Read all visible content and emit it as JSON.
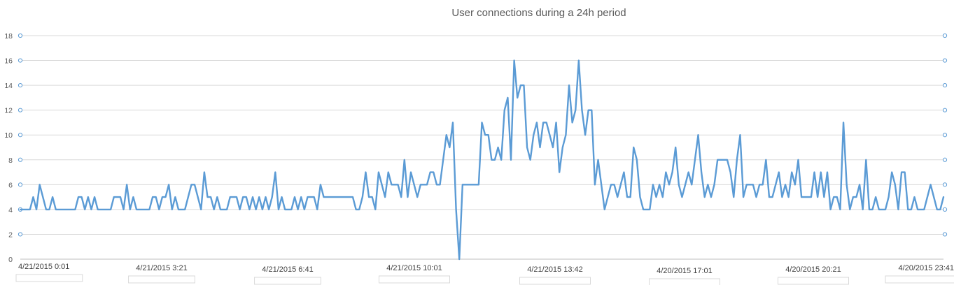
{
  "chart_data": {
    "type": "line",
    "title": "User connections during a 24h period",
    "xlabel": "",
    "ylabel": "",
    "ylim": [
      0,
      18
    ],
    "y_ticks": [
      0,
      2,
      4,
      6,
      8,
      10,
      12,
      14,
      16,
      18
    ],
    "x_tick_labels": [
      "4/21/2015 0:01",
      "4/21/2015 3:21",
      "4/21/2015 6:41",
      "4/21/2015 10:01",
      "4/21/2015 13:42",
      "4/20/2015 17:01",
      "4/20/2015 20:21",
      "4/20/2015 23:41"
    ],
    "grid": "horizontal",
    "legend": "none",
    "colors": {
      "series": "#5b9bd5",
      "grid": "#d9d9d9",
      "text": "#595959"
    },
    "series": [
      {
        "values": [
          4,
          4,
          4,
          4,
          5,
          4,
          6,
          5,
          4,
          4,
          5,
          4,
          4,
          4,
          4,
          4,
          4,
          4,
          5,
          5,
          4,
          5,
          4,
          5,
          4,
          4,
          4,
          4,
          4,
          5,
          5,
          5,
          4,
          6,
          4,
          5,
          4,
          4,
          4,
          4,
          4,
          5,
          5,
          4,
          5,
          5,
          6,
          4,
          5,
          4,
          4,
          4,
          5,
          6,
          6,
          5,
          4,
          7,
          5,
          5,
          4,
          5,
          4,
          4,
          4,
          5,
          5,
          5,
          4,
          5,
          5,
          4,
          5,
          4,
          5,
          4,
          5,
          4,
          5,
          7,
          4,
          5,
          4,
          4,
          4,
          5,
          4,
          5,
          4,
          5,
          5,
          5,
          4,
          6,
          5,
          5,
          5,
          5,
          5,
          5,
          5,
          5,
          5,
          5,
          4,
          4,
          5,
          7,
          5,
          5,
          4,
          7,
          6,
          5,
          7,
          6,
          6,
          6,
          5,
          8,
          5,
          7,
          6,
          5,
          6,
          6,
          6,
          7,
          7,
          6,
          6,
          8,
          10,
          9,
          11,
          4,
          0,
          6,
          6,
          6,
          6,
          6,
          6,
          11,
          10,
          10,
          8,
          8,
          9,
          8,
          12,
          13,
          8,
          16,
          13,
          14,
          14,
          9,
          8,
          10,
          11,
          9,
          11,
          11,
          10,
          9,
          11,
          7,
          9,
          10,
          14,
          11,
          12,
          16,
          12,
          10,
          12,
          12,
          6,
          8,
          6,
          4,
          5,
          6,
          6,
          5,
          6,
          7,
          5,
          5,
          9,
          8,
          5,
          4,
          4,
          4,
          6,
          5,
          6,
          5,
          7,
          6,
          7,
          9,
          6,
          5,
          6,
          7,
          6,
          8,
          10,
          7,
          5,
          6,
          5,
          6,
          8,
          8,
          8,
          8,
          7,
          5,
          8,
          10,
          5,
          6,
          6,
          6,
          5,
          6,
          6,
          8,
          5,
          5,
          6,
          7,
          5,
          6,
          5,
          7,
          6,
          8,
          5,
          5,
          5,
          5,
          7,
          5,
          7,
          5,
          7,
          4,
          5,
          5,
          4,
          11,
          6,
          4,
          5,
          5,
          6,
          4,
          8,
          4,
          4,
          5,
          4,
          4,
          4,
          5,
          7,
          6,
          4,
          7,
          7,
          4,
          4,
          5,
          4,
          4,
          4,
          5,
          6,
          5,
          4,
          4,
          5
        ]
      }
    ]
  }
}
